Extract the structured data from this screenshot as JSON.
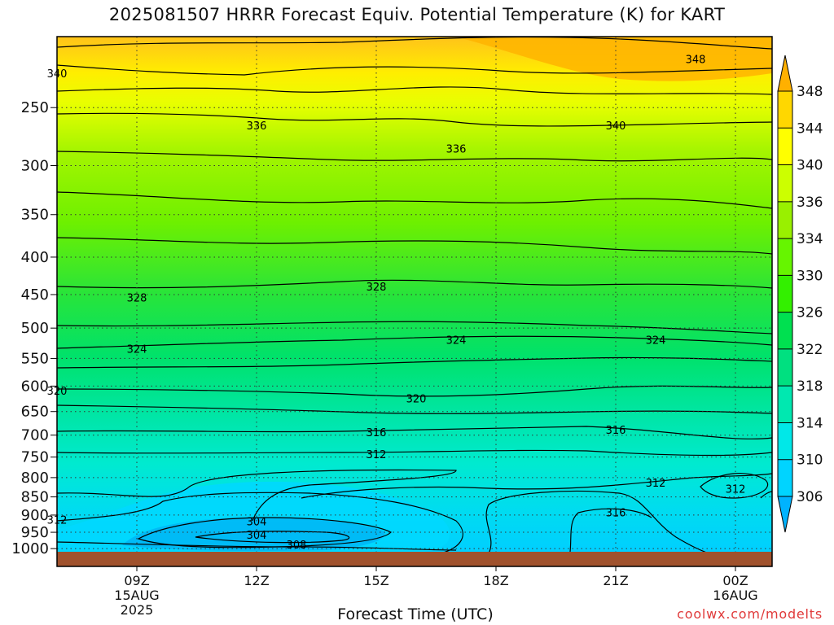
{
  "header": {
    "title": "2025081507 HRRR Forecast Equiv. Potential Temperature (K) for KART"
  },
  "footer": {
    "xlabel": "Forecast Time (UTC)",
    "credit": "coolwx.com/modelts"
  },
  "colors": {
    "ground": "#a0522d",
    "contour_line": "#000000",
    "grid": "#333333"
  },
  "chart_data": {
    "type": "heatmap",
    "title": "2025081507 HRRR Forecast Equiv. Potential Temperature (K) for KART",
    "xlabel": "Forecast Time (UTC)",
    "ylabel": "",
    "x_ticks": [
      {
        "label": "09Z",
        "sub": [
          "15AUG",
          "2025"
        ]
      },
      {
        "label": "12Z",
        "sub": []
      },
      {
        "label": "15Z",
        "sub": []
      },
      {
        "label": "18Z",
        "sub": []
      },
      {
        "label": "21Z",
        "sub": []
      },
      {
        "label": "00Z",
        "sub": [
          "16AUG"
        ]
      }
    ],
    "y_ticks": [
      "250",
      "300",
      "350",
      "400",
      "450",
      "500",
      "550",
      "600",
      "650",
      "700",
      "750",
      "800",
      "850",
      "900",
      "950",
      "1000"
    ],
    "y_axis": "pressure (hPa), log scale, inverted",
    "ylim": [
      1010,
      200
    ],
    "grid": true,
    "colorbar": {
      "position": "right",
      "ticks": [
        "306",
        "310",
        "314",
        "318",
        "322",
        "326",
        "330",
        "334",
        "336",
        "340",
        "344",
        "348"
      ],
      "colors": [
        "#00b3ff",
        "#00d4ff",
        "#00e8e8",
        "#00e8b0",
        "#00e080",
        "#00e050",
        "#33f000",
        "#66f500",
        "#99f000",
        "#ccff00",
        "#ffff00",
        "#ffd700",
        "#ffb000"
      ]
    },
    "contour_labels": [
      {
        "text": "348",
        "time": "23Z",
        "level": 215
      },
      {
        "text": "340",
        "time": "07Z",
        "level": 225
      },
      {
        "text": "336",
        "time": "12Z",
        "level": 265
      },
      {
        "text": "340",
        "time": "21Z",
        "level": 265
      },
      {
        "text": "336",
        "time": "17Z",
        "level": 285
      },
      {
        "text": "328",
        "time": "15Z",
        "level": 440
      },
      {
        "text": "328",
        "time": "09Z",
        "level": 455
      },
      {
        "text": "324",
        "time": "09Z",
        "level": 535
      },
      {
        "text": "324",
        "time": "17Z",
        "level": 520
      },
      {
        "text": "324",
        "time": "22Z",
        "level": 520
      },
      {
        "text": "320",
        "time": "07Z",
        "level": 610
      },
      {
        "text": "320",
        "time": "16Z",
        "level": 625
      },
      {
        "text": "316",
        "time": "15Z",
        "level": 695
      },
      {
        "text": "316",
        "time": "21Z",
        "level": 690
      },
      {
        "text": "312",
        "time": "15Z",
        "level": 745
      },
      {
        "text": "312",
        "time": "22Z",
        "level": 815
      },
      {
        "text": "312",
        "time": "00Z",
        "level": 830
      },
      {
        "text": "312",
        "time": "07Z",
        "level": 915
      },
      {
        "text": "316",
        "time": "21Z",
        "level": 895
      },
      {
        "text": "304",
        "time": "12Z",
        "level": 920
      },
      {
        "text": "304",
        "time": "12Z",
        "level": 960
      },
      {
        "text": "308",
        "time": "13Z",
        "level": 990
      }
    ]
  }
}
